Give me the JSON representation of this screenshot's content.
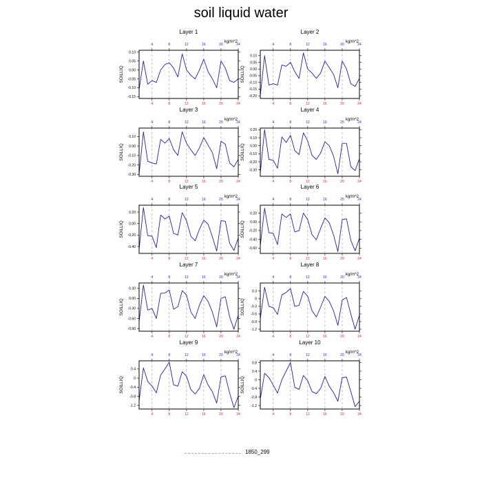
{
  "title": "soil liquid water",
  "colors": {
    "line": "#2a1aa0",
    "grid": "#999999",
    "top_ticks": "#2222dd",
    "bottom_ticks": "#dd2222"
  },
  "legend": {
    "label": "1850_299",
    "line_color": "#b99ae0"
  },
  "chart_data": [
    {
      "type": "line",
      "title": "Layer 1",
      "ylabel": "SOILLIQ",
      "units": "kg/m^2",
      "x": [
        1,
        2,
        3,
        4,
        5,
        6,
        7,
        8,
        9,
        10,
        11,
        12,
        13,
        14,
        15,
        16,
        17,
        18,
        19,
        20,
        21,
        22,
        23,
        24
      ],
      "xticks": [
        4,
        8,
        12,
        16,
        20,
        24
      ],
      "xlim": [
        1,
        24
      ],
      "ylim": [
        -0.16,
        0.11
      ],
      "yticks": [
        0.1,
        0.05,
        0.0,
        -0.05,
        -0.1,
        -0.15
      ],
      "ytick_labels": [
        "0.10",
        "0.05",
        "0.00",
        "-0.05",
        "-0.10",
        "-0.15"
      ],
      "series": [
        {
          "values": [
            -0.11,
            0.05,
            -0.08,
            -0.06,
            -0.07,
            0.0,
            0.03,
            0.04,
            0.01,
            -0.04,
            0.09,
            0.0,
            -0.03,
            -0.05,
            0.0,
            0.06,
            -0.01,
            -0.05,
            -0.1,
            0.05,
            0.01,
            -0.06,
            -0.07,
            -0.05
          ]
        }
      ]
    },
    {
      "type": "line",
      "title": "Layer 2",
      "ylabel": "SOILLIQ",
      "units": "kg/m^2",
      "x": [
        1,
        2,
        3,
        4,
        5,
        6,
        7,
        8,
        9,
        10,
        11,
        12,
        13,
        14,
        15,
        16,
        17,
        18,
        19,
        20,
        21,
        22,
        23,
        24
      ],
      "xticks": [
        4,
        8,
        12,
        16,
        20,
        24
      ],
      "xlim": [
        1,
        24
      ],
      "ylim": [
        -0.22,
        0.14
      ],
      "yticks": [
        0.1,
        0.05,
        0.0,
        -0.05,
        -0.1,
        -0.15,
        -0.2
      ],
      "ytick_labels": [
        "0.10",
        "0.05",
        "0.00",
        "-0.05",
        "-0.10",
        "-0.15",
        "-0.20"
      ],
      "series": [
        {
          "values": [
            -0.2,
            0.1,
            -0.12,
            -0.11,
            -0.12,
            0.03,
            0.02,
            0.05,
            -0.02,
            -0.07,
            0.12,
            0.0,
            -0.03,
            -0.07,
            -0.03,
            0.06,
            0.01,
            -0.04,
            -0.14,
            0.06,
            0.0,
            -0.11,
            -0.13,
            -0.07
          ]
        }
      ]
    },
    {
      "type": "line",
      "title": "Layer 3",
      "ylabel": "SOILLIQ",
      "units": "kg/m^2",
      "x": [
        1,
        2,
        3,
        4,
        5,
        6,
        7,
        8,
        9,
        10,
        11,
        12,
        13,
        14,
        15,
        16,
        17,
        18,
        19,
        20,
        21,
        22,
        23,
        24
      ],
      "xticks": [
        4,
        8,
        12,
        16,
        20,
        24
      ],
      "xlim": [
        1,
        24
      ],
      "ylim": [
        -0.32,
        0.19
      ],
      "yticks": [
        0.1,
        0.0,
        -0.1,
        -0.2,
        -0.3
      ],
      "ytick_labels": [
        "0.10",
        "0.00",
        "-0.10",
        "-0.20",
        "-0.30"
      ],
      "series": [
        {
          "values": [
            -0.3,
            0.15,
            -0.16,
            -0.18,
            -0.19,
            0.07,
            0.03,
            0.08,
            -0.04,
            -0.1,
            0.15,
            0.03,
            -0.04,
            -0.1,
            -0.02,
            0.09,
            0.01,
            -0.07,
            -0.24,
            0.05,
            0.02,
            -0.18,
            -0.22,
            -0.14
          ]
        }
      ]
    },
    {
      "type": "line",
      "title": "Layer 4",
      "ylabel": "SOILLIQ",
      "units": "kg/m^2",
      "x": [
        1,
        2,
        3,
        4,
        5,
        6,
        7,
        8,
        9,
        10,
        11,
        12,
        13,
        14,
        15,
        16,
        17,
        18,
        19,
        20,
        21,
        22,
        23,
        24
      ],
      "xticks": [
        4,
        8,
        12,
        16,
        20,
        24
      ],
      "xlim": [
        1,
        24
      ],
      "ylim": [
        -0.38,
        0.22
      ],
      "yticks": [
        0.2,
        0.1,
        0.0,
        -0.1,
        -0.2,
        -0.3
      ],
      "ytick_labels": [
        "0.20",
        "0.10",
        "0.00",
        "-0.10",
        "-0.20",
        "-0.30"
      ],
      "series": [
        {
          "values": [
            -0.34,
            0.2,
            -0.17,
            -0.18,
            -0.28,
            0.11,
            0.04,
            0.13,
            -0.06,
            -0.11,
            0.16,
            0.06,
            -0.12,
            -0.17,
            -0.09,
            0.05,
            0.0,
            -0.13,
            -0.35,
            0.03,
            0.03,
            -0.26,
            -0.31,
            -0.16
          ]
        }
      ]
    },
    {
      "type": "line",
      "title": "Layer 5",
      "ylabel": "SOILLIQ",
      "units": "kg/m^2",
      "x": [
        1,
        2,
        3,
        4,
        5,
        6,
        7,
        8,
        9,
        10,
        11,
        12,
        13,
        14,
        15,
        16,
        17,
        18,
        19,
        20,
        21,
        22,
        23,
        24
      ],
      "xticks": [
        4,
        8,
        12,
        16,
        20,
        24
      ],
      "xlim": [
        1,
        24
      ],
      "ylim": [
        -0.52,
        0.32
      ],
      "yticks": [
        0.2,
        0.0,
        -0.2,
        -0.4
      ],
      "ytick_labels": [
        "0.20",
        "0.00",
        "-0.20",
        "-0.40"
      ],
      "series": [
        {
          "values": [
            -0.45,
            0.28,
            -0.21,
            -0.22,
            -0.42,
            0.15,
            0.08,
            0.13,
            -0.17,
            -0.2,
            0.19,
            0.05,
            -0.22,
            -0.3,
            -0.1,
            0.06,
            -0.01,
            -0.23,
            -0.48,
            0.05,
            0.04,
            -0.34,
            -0.47,
            -0.25
          ]
        }
      ]
    },
    {
      "type": "line",
      "title": "Layer 6",
      "ylabel": "SOILLIQ",
      "units": "kg/m^2",
      "x": [
        1,
        2,
        3,
        4,
        5,
        6,
        7,
        8,
        9,
        10,
        11,
        12,
        13,
        14,
        15,
        16,
        17,
        18,
        19,
        20,
        21,
        22,
        23,
        24
      ],
      "xticks": [
        4,
        8,
        12,
        16,
        20,
        24
      ],
      "xlim": [
        1,
        24
      ],
      "ylim": [
        -0.72,
        0.38
      ],
      "yticks": [
        0.2,
        0.0,
        -0.2,
        -0.4,
        -0.6
      ],
      "ytick_labels": [
        "0.20",
        "0.00",
        "-0.20",
        "-0.40",
        "-0.60"
      ],
      "series": [
        {
          "values": [
            -0.55,
            0.31,
            -0.25,
            -0.26,
            -0.52,
            0.18,
            0.1,
            0.18,
            -0.23,
            -0.2,
            0.2,
            0.05,
            -0.29,
            -0.41,
            -0.15,
            0.09,
            -0.02,
            -0.3,
            -0.68,
            0.05,
            0.07,
            -0.42,
            -0.66,
            -0.37
          ]
        }
      ]
    },
    {
      "type": "line",
      "title": "Layer 7",
      "ylabel": "SOILLIQ",
      "units": "kg/m^2",
      "x": [
        1,
        2,
        3,
        4,
        5,
        6,
        7,
        8,
        9,
        10,
        11,
        12,
        13,
        14,
        15,
        16,
        17,
        18,
        19,
        20,
        21,
        22,
        23,
        24
      ],
      "xticks": [
        4,
        8,
        12,
        16,
        20,
        24
      ],
      "xlim": [
        1,
        24
      ],
      "ylim": [
        -0.98,
        0.46
      ],
      "yticks": [
        0.3,
        0.0,
        -0.3,
        -0.6,
        -0.9
      ],
      "ytick_labels": [
        "0.30",
        "0.00",
        "-0.30",
        "-0.60",
        "-0.90"
      ],
      "series": [
        {
          "values": [
            -0.7,
            0.4,
            -0.35,
            -0.3,
            -0.6,
            0.15,
            0.16,
            0.25,
            -0.32,
            -0.25,
            0.23,
            0.1,
            -0.4,
            -0.6,
            -0.2,
            0.08,
            -0.09,
            -0.41,
            -0.85,
            0.0,
            0.05,
            -0.55,
            -0.92,
            -0.5
          ]
        }
      ]
    },
    {
      "type": "line",
      "title": "Layer 8",
      "ylabel": "SOILLIQ",
      "units": "kg/m^2",
      "x": [
        1,
        2,
        3,
        4,
        5,
        6,
        7,
        8,
        9,
        10,
        11,
        12,
        13,
        14,
        15,
        16,
        17,
        18,
        19,
        20,
        21,
        22,
        23,
        24
      ],
      "xticks": [
        4,
        8,
        12,
        16,
        20,
        24
      ],
      "xlim": [
        1,
        24
      ],
      "ylim": [
        -1.28,
        0.62
      ],
      "yticks": [
        0.3,
        0.0,
        -0.3,
        -0.6,
        -0.9,
        -1.2
      ],
      "ytick_labels": [
        "0.3",
        "0",
        "-0.3",
        "-0.6",
        "-0.9",
        "-1.2"
      ],
      "series": [
        {
          "values": [
            -0.8,
            0.45,
            -0.3,
            -0.35,
            -0.62,
            0.15,
            0.25,
            0.4,
            -0.3,
            -0.26,
            0.29,
            0.1,
            -0.47,
            -0.72,
            -0.33,
            0.09,
            -0.1,
            -0.48,
            -1.05,
            -0.05,
            0.05,
            -0.6,
            -1.2,
            -0.65
          ]
        }
      ]
    },
    {
      "type": "line",
      "title": "Layer 9",
      "ylabel": "SOILLIQ",
      "units": "kg/m^2",
      "x": [
        1,
        2,
        3,
        4,
        5,
        6,
        7,
        8,
        9,
        10,
        11,
        12,
        13,
        14,
        15,
        16,
        17,
        18,
        19,
        20,
        21,
        22,
        23,
        24
      ],
      "xticks": [
        4,
        8,
        12,
        16,
        20,
        24
      ],
      "xlim": [
        1,
        24
      ],
      "ylim": [
        -1.36,
        0.76
      ],
      "yticks": [
        0.4,
        0.0,
        -0.4,
        -0.8,
        -1.2
      ],
      "ytick_labels": [
        "0.4",
        "0",
        "-0.4",
        "-0.8",
        "-1.2"
      ],
      "series": [
        {
          "values": [
            -1.0,
            0.45,
            -0.15,
            -0.35,
            -0.65,
            0.13,
            0.4,
            0.7,
            -0.3,
            -0.35,
            0.28,
            0.08,
            -0.5,
            -0.7,
            -0.45,
            0.15,
            -0.3,
            -0.6,
            -1.1,
            0.05,
            0.1,
            -0.65,
            -1.3,
            -0.8
          ]
        }
      ]
    },
    {
      "type": "line",
      "title": "Layer 10",
      "ylabel": "SOILLIQ",
      "units": "kg/m^2",
      "x": [
        1,
        2,
        3,
        4,
        5,
        6,
        7,
        8,
        9,
        10,
        11,
        12,
        13,
        14,
        15,
        16,
        17,
        18,
        19,
        20,
        21,
        22,
        23,
        24
      ],
      "xticks": [
        4,
        8,
        12,
        16,
        20,
        24
      ],
      "xlim": [
        1,
        24
      ],
      "ylim": [
        -1.36,
        0.88
      ],
      "yticks": [
        0.8,
        0.4,
        0.0,
        -0.4,
        -0.8,
        -1.2
      ],
      "ytick_labels": [
        "0.8",
        "0.4",
        "0",
        "-0.4",
        "-0.8",
        "-1.2"
      ],
      "series": [
        {
          "values": [
            -0.9,
            0.3,
            0.1,
            -0.25,
            -0.62,
            0.0,
            0.4,
            0.8,
            -0.35,
            -0.45,
            0.2,
            -0.05,
            -0.55,
            -0.65,
            -0.4,
            0.15,
            -0.3,
            -0.6,
            -1.0,
            0.1,
            0.12,
            -0.55,
            -1.25,
            -1.0
          ]
        }
      ]
    }
  ]
}
